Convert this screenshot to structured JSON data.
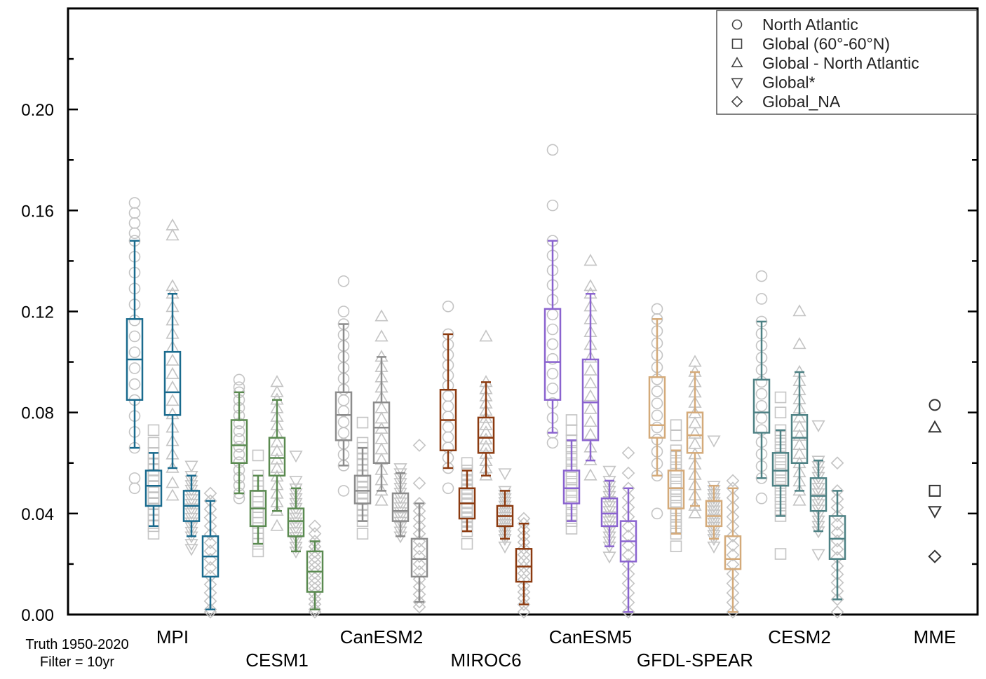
{
  "chart_data": {
    "type": "box",
    "title": "",
    "xlabel": "",
    "ylabel": "",
    "ylim": [
      0.0,
      0.24
    ],
    "yticks": [
      "0.00",
      "0.04",
      "0.08",
      "0.12",
      "0.16",
      "0.20"
    ],
    "ytick_values": [
      0.0,
      0.04,
      0.08,
      0.12,
      0.16,
      0.2
    ],
    "annotation": {
      "line1": "Truth 1950-2020",
      "line2": "Filter = 10yr"
    },
    "legend": {
      "placement": "top-right",
      "entries": [
        {
          "marker": "circle",
          "label": "North Atlantic"
        },
        {
          "marker": "square",
          "label": "Global (60°-60°N)"
        },
        {
          "marker": "triangle-up",
          "label": "Global - North Atlantic"
        },
        {
          "marker": "triangle-down",
          "label": "Global*"
        },
        {
          "marker": "diamond",
          "label": "Global_NA"
        }
      ]
    },
    "models": [
      {
        "name": "MPI",
        "color": "#1a6b8e",
        "label_row": "top",
        "boxes": [
          {
            "metric": "North Atlantic",
            "marker": "circle",
            "whisker_low": 0.066,
            "q1": 0.085,
            "median": 0.101,
            "q3": 0.117,
            "whisker_high": 0.148,
            "outliers": [
              0.05,
              0.054,
              0.151,
              0.155,
              0.159,
              0.163
            ]
          },
          {
            "metric": "Global (60°-60°N)",
            "marker": "square",
            "whisker_low": 0.035,
            "q1": 0.043,
            "median": 0.051,
            "q3": 0.057,
            "whisker_high": 0.064,
            "outliers": [
              0.032,
              0.068,
              0.073
            ]
          },
          {
            "metric": "Global - North Atlantic",
            "marker": "triangle-up",
            "whisker_low": 0.058,
            "q1": 0.079,
            "median": 0.088,
            "q3": 0.104,
            "whisker_high": 0.127,
            "outliers": [
              0.047,
              0.052,
              0.13,
              0.15,
              0.154
            ]
          },
          {
            "metric": "Global*",
            "marker": "triangle-down",
            "whisker_low": 0.031,
            "q1": 0.037,
            "median": 0.043,
            "q3": 0.049,
            "whisker_high": 0.055,
            "outliers": [
              0.026,
              0.028,
              0.059
            ]
          },
          {
            "metric": "Global_NA",
            "marker": "diamond",
            "whisker_low": 0.002,
            "q1": 0.015,
            "median": 0.023,
            "q3": 0.031,
            "whisker_high": 0.045,
            "outliers": [
              0.001,
              0.048
            ]
          }
        ]
      },
      {
        "name": "CESM1",
        "color": "#5a8a50",
        "label_row": "bottom",
        "boxes": [
          {
            "metric": "North Atlantic",
            "marker": "circle",
            "whisker_low": 0.048,
            "q1": 0.06,
            "median": 0.067,
            "q3": 0.077,
            "whisker_high": 0.088,
            "outliers": [
              0.046,
              0.09,
              0.093
            ]
          },
          {
            "metric": "Global (60°-60°N)",
            "marker": "square",
            "whisker_low": 0.028,
            "q1": 0.035,
            "median": 0.042,
            "q3": 0.049,
            "whisker_high": 0.055,
            "outliers": [
              0.025,
              0.063
            ]
          },
          {
            "metric": "Global - North Atlantic",
            "marker": "triangle-up",
            "whisker_low": 0.041,
            "q1": 0.055,
            "median": 0.062,
            "q3": 0.07,
            "whisker_high": 0.085,
            "outliers": [
              0.035,
              0.088,
              0.092
            ]
          },
          {
            "metric": "Global*",
            "marker": "triangle-down",
            "whisker_low": 0.025,
            "q1": 0.031,
            "median": 0.037,
            "q3": 0.042,
            "whisker_high": 0.05,
            "outliers": [
              0.053,
              0.063
            ]
          },
          {
            "metric": "Global_NA",
            "marker": "diamond",
            "whisker_low": 0.002,
            "q1": 0.009,
            "median": 0.017,
            "q3": 0.025,
            "whisker_high": 0.029,
            "outliers": [
              0.001,
              0.032,
              0.035
            ]
          }
        ]
      },
      {
        "name": "CanESM2",
        "color": "#8c8c8c",
        "label_row": "top",
        "boxes": [
          {
            "metric": "North Atlantic",
            "marker": "circle",
            "whisker_low": 0.059,
            "q1": 0.069,
            "median": 0.079,
            "q3": 0.088,
            "whisker_high": 0.115,
            "outliers": [
              0.049,
              0.12,
              0.132
            ]
          },
          {
            "metric": "Global (60°-60°N)",
            "marker": "square",
            "whisker_low": 0.037,
            "q1": 0.044,
            "median": 0.049,
            "q3": 0.055,
            "whisker_high": 0.066,
            "outliers": [
              0.032,
              0.068,
              0.076
            ]
          },
          {
            "metric": "Global - North Atlantic",
            "marker": "triangle-up",
            "whisker_low": 0.049,
            "q1": 0.06,
            "median": 0.074,
            "q3": 0.084,
            "whisker_high": 0.102,
            "outliers": [
              0.045,
              0.11,
              0.118
            ]
          },
          {
            "metric": "Global*",
            "marker": "triangle-down",
            "whisker_low": 0.031,
            "q1": 0.037,
            "median": 0.041,
            "q3": 0.048,
            "whisker_high": 0.056,
            "outliers": [
              0.058
            ]
          },
          {
            "metric": "Global_NA",
            "marker": "diamond",
            "whisker_low": 0.005,
            "q1": 0.015,
            "median": 0.022,
            "q3": 0.03,
            "whisker_high": 0.044,
            "outliers": [
              0.003,
              0.052,
              0.067
            ]
          }
        ]
      },
      {
        "name": "MIROC6",
        "color": "#8b3a10",
        "label_row": "bottom",
        "boxes": [
          {
            "metric": "North Atlantic",
            "marker": "circle",
            "whisker_low": 0.058,
            "q1": 0.065,
            "median": 0.077,
            "q3": 0.089,
            "whisker_high": 0.111,
            "outliers": [
              0.05,
              0.122
            ]
          },
          {
            "metric": "Global (60°-60°N)",
            "marker": "square",
            "whisker_low": 0.033,
            "q1": 0.038,
            "median": 0.044,
            "q3": 0.05,
            "whisker_high": 0.057,
            "outliers": [
              0.028,
              0.06
            ]
          },
          {
            "metric": "Global - North Atlantic",
            "marker": "triangle-up",
            "whisker_low": 0.055,
            "q1": 0.064,
            "median": 0.07,
            "q3": 0.078,
            "whisker_high": 0.092,
            "outliers": [
              0.11
            ]
          },
          {
            "metric": "Global*",
            "marker": "triangle-down",
            "whisker_low": 0.03,
            "q1": 0.035,
            "median": 0.039,
            "q3": 0.043,
            "whisker_high": 0.049,
            "outliers": [
              0.027,
              0.056
            ]
          },
          {
            "metric": "Global_NA",
            "marker": "diamond",
            "whisker_low": 0.004,
            "q1": 0.013,
            "median": 0.019,
            "q3": 0.026,
            "whisker_high": 0.036,
            "outliers": [
              0.001,
              0.038
            ]
          }
        ]
      },
      {
        "name": "CanESM5",
        "color": "#8a63cf",
        "label_row": "top",
        "boxes": [
          {
            "metric": "North Atlantic",
            "marker": "circle",
            "whisker_low": 0.072,
            "q1": 0.085,
            "median": 0.1,
            "q3": 0.121,
            "whisker_high": 0.148,
            "outliers": [
              0.068,
              0.162,
              0.184
            ]
          },
          {
            "metric": "Global (60°-60°N)",
            "marker": "square",
            "whisker_low": 0.037,
            "q1": 0.044,
            "median": 0.05,
            "q3": 0.057,
            "whisker_high": 0.069,
            "outliers": [
              0.034,
              0.073,
              0.077
            ]
          },
          {
            "metric": "Global - North Atlantic",
            "marker": "triangle-up",
            "whisker_low": 0.061,
            "q1": 0.069,
            "median": 0.084,
            "q3": 0.101,
            "whisker_high": 0.127,
            "outliers": [
              0.055,
              0.13,
              0.14
            ]
          },
          {
            "metric": "Global*",
            "marker": "triangle-down",
            "whisker_low": 0.027,
            "q1": 0.035,
            "median": 0.04,
            "q3": 0.046,
            "whisker_high": 0.053,
            "outliers": [
              0.023,
              0.057
            ]
          },
          {
            "metric": "Global_NA",
            "marker": "diamond",
            "whisker_low": 0.001,
            "q1": 0.021,
            "median": 0.029,
            "q3": 0.037,
            "whisker_high": 0.05,
            "outliers": [
              0.001,
              0.056,
              0.064
            ]
          }
        ]
      },
      {
        "name": "GFDL-SPEAR",
        "color": "#d4aa7a",
        "label_row": "bottom",
        "boxes": [
          {
            "metric": "North Atlantic",
            "marker": "circle",
            "whisker_low": 0.055,
            "q1": 0.07,
            "median": 0.075,
            "q3": 0.094,
            "whisker_high": 0.117,
            "outliers": [
              0.04,
              0.121
            ]
          },
          {
            "metric": "Global (60°-60°N)",
            "marker": "square",
            "whisker_low": 0.032,
            "q1": 0.042,
            "median": 0.05,
            "q3": 0.057,
            "whisker_high": 0.065,
            "outliers": [
              0.027,
              0.071,
              0.075
            ]
          },
          {
            "metric": "Global - North Atlantic",
            "marker": "triangle-up",
            "whisker_low": 0.043,
            "q1": 0.064,
            "median": 0.071,
            "q3": 0.08,
            "whisker_high": 0.096,
            "outliers": [
              0.04,
              0.1
            ]
          },
          {
            "metric": "Global*",
            "marker": "triangle-down",
            "whisker_low": 0.03,
            "q1": 0.035,
            "median": 0.039,
            "q3": 0.045,
            "whisker_high": 0.051,
            "outliers": [
              0.027,
              0.069
            ]
          },
          {
            "metric": "Global_NA",
            "marker": "diamond",
            "whisker_low": 0.001,
            "q1": 0.018,
            "median": 0.022,
            "q3": 0.031,
            "whisker_high": 0.05,
            "outliers": [
              0.053
            ]
          }
        ]
      },
      {
        "name": "CESM2",
        "color": "#4d8184",
        "label_row": "top",
        "boxes": [
          {
            "metric": "North Atlantic",
            "marker": "circle",
            "whisker_low": 0.054,
            "q1": 0.072,
            "median": 0.08,
            "q3": 0.093,
            "whisker_high": 0.116,
            "outliers": [
              0.046,
              0.125,
              0.134
            ]
          },
          {
            "metric": "Global (60°-60°N)",
            "marker": "square",
            "whisker_low": 0.039,
            "q1": 0.051,
            "median": 0.057,
            "q3": 0.064,
            "whisker_high": 0.073,
            "outliers": [
              0.024,
              0.08,
              0.086
            ]
          },
          {
            "metric": "Global - North Atlantic",
            "marker": "triangle-up",
            "whisker_low": 0.049,
            "q1": 0.06,
            "median": 0.07,
            "q3": 0.079,
            "whisker_high": 0.096,
            "outliers": [
              0.045,
              0.107,
              0.12
            ]
          },
          {
            "metric": "Global*",
            "marker": "triangle-down",
            "whisker_low": 0.033,
            "q1": 0.041,
            "median": 0.047,
            "q3": 0.054,
            "whisker_high": 0.061,
            "outliers": [
              0.024,
              0.075
            ]
          },
          {
            "metric": "Global_NA",
            "marker": "diamond",
            "whisker_low": 0.006,
            "q1": 0.022,
            "median": 0.03,
            "q3": 0.039,
            "whisker_high": 0.049,
            "outliers": [
              0.001,
              0.06
            ]
          }
        ]
      },
      {
        "name": "MME",
        "color": "#333333",
        "label_row": "top",
        "points": [
          {
            "metric": "North Atlantic",
            "marker": "circle",
            "value": 0.083
          },
          {
            "metric": "Global - North Atlantic",
            "marker": "triangle-up",
            "value": 0.074
          },
          {
            "metric": "Global (60°-60°N)",
            "marker": "square",
            "value": 0.049
          },
          {
            "metric": "Global*",
            "marker": "triangle-down",
            "value": 0.041
          },
          {
            "metric": "Global_NA",
            "marker": "diamond",
            "value": 0.023
          }
        ]
      }
    ]
  }
}
